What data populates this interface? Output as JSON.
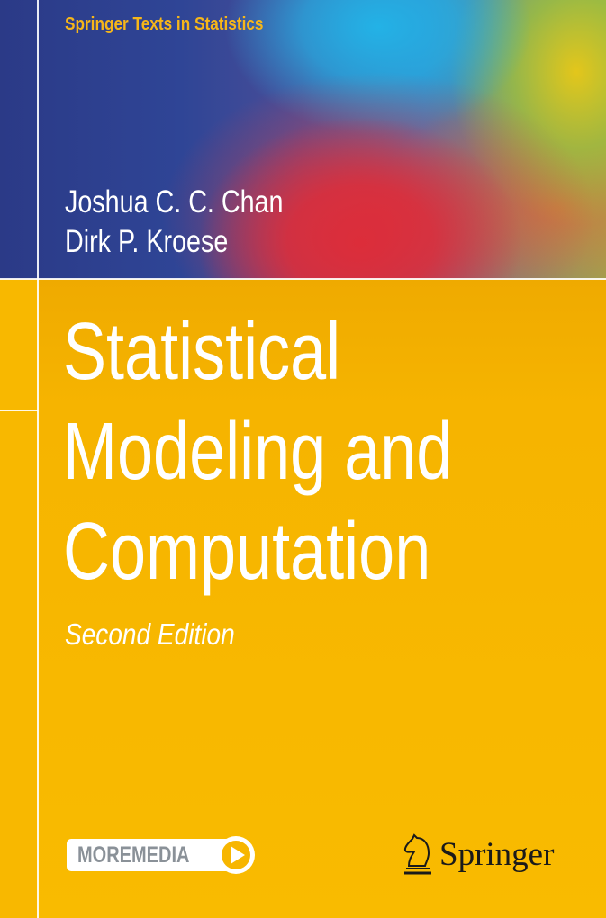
{
  "cover": {
    "series": "Springer Texts in Statistics",
    "authors": [
      "Joshua C. C. Chan",
      "Dirk P. Kroese"
    ],
    "title_lines": [
      "Statistical",
      "Modeling and",
      "Computation"
    ],
    "edition": "Second Edition",
    "moremedia_label": "MOREMEDIA",
    "moremedia_icon": "play-icon",
    "publisher": "Springer",
    "publisher_logo_icon": "knight-chess-piece-icon",
    "colors": {
      "background": "#f7b600",
      "series_text": "#f6b619",
      "title_text": "#ffffff",
      "moremedia_text": "#8a9198"
    }
  }
}
